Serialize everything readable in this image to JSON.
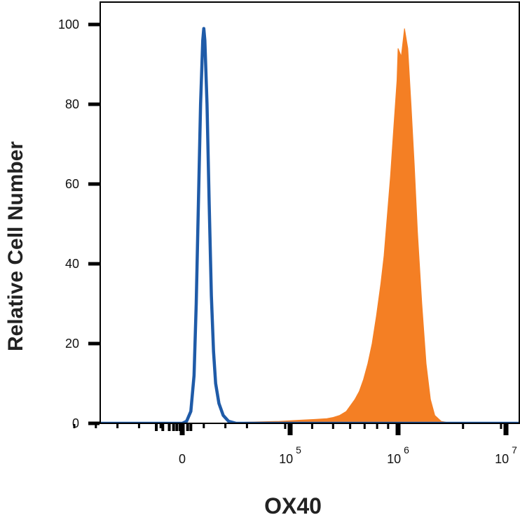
{
  "chart_data": {
    "type": "area",
    "xlabel": "OX40",
    "ylabel": "Relative Cell Number",
    "ylim": [
      0,
      100
    ],
    "yticks": [
      "0",
      "20",
      "40",
      "60",
      "80",
      "100"
    ],
    "x_scale": "biexponential",
    "xticks": [
      {
        "base": "0",
        "exp": ""
      },
      {
        "base": "10",
        "exp": "5"
      },
      {
        "base": "10",
        "exp": "6"
      },
      {
        "base": "10",
        "exp": "7"
      }
    ],
    "grid": false,
    "series": [
      {
        "style": "filled",
        "color": "#F47F24",
        "points": [
          [
            0.0,
            0.0
          ],
          [
            0.2,
            0.0
          ],
          [
            0.3,
            0.3
          ],
          [
            0.45,
            0.5
          ],
          [
            0.55,
            0.8
          ],
          [
            0.62,
            1.0
          ],
          [
            0.67,
            1.2
          ],
          [
            0.7,
            1.5
          ],
          [
            0.73,
            2.0
          ],
          [
            0.76,
            3.0
          ],
          [
            0.78,
            4.5
          ],
          [
            0.8,
            6.0
          ],
          [
            0.82,
            8.0
          ],
          [
            0.84,
            11.0
          ],
          [
            0.86,
            15.0
          ],
          [
            0.88,
            20.0
          ],
          [
            0.9,
            27.0
          ],
          [
            0.92,
            35.0
          ],
          [
            0.935,
            42.0
          ],
          [
            0.95,
            52.0
          ],
          [
            0.965,
            62.0
          ],
          [
            0.98,
            74.0
          ],
          [
            0.995,
            86.0
          ],
          [
            1.0,
            94.0
          ],
          [
            1.015,
            92.0
          ],
          [
            1.03,
            99.0
          ],
          [
            1.045,
            94.0
          ],
          [
            1.06,
            80.0
          ],
          [
            1.075,
            65.0
          ],
          [
            1.09,
            48.0
          ],
          [
            1.11,
            30.0
          ],
          [
            1.13,
            15.0
          ],
          [
            1.15,
            6.0
          ],
          [
            1.17,
            2.0
          ],
          [
            1.2,
            0.5
          ],
          [
            1.25,
            0.0
          ],
          [
            1.6,
            0.0
          ]
        ]
      },
      {
        "style": "line",
        "color": "#1F5BA8",
        "points": [
          [
            -0.6,
            0.0
          ],
          [
            0.0,
            0.0
          ],
          [
            0.02,
            0.5
          ],
          [
            0.04,
            3.0
          ],
          [
            0.055,
            12.0
          ],
          [
            0.065,
            30.0
          ],
          [
            0.075,
            55.0
          ],
          [
            0.085,
            80.0
          ],
          [
            0.095,
            96.0
          ],
          [
            0.1,
            99.0
          ],
          [
            0.105,
            96.0
          ],
          [
            0.115,
            80.0
          ],
          [
            0.125,
            55.0
          ],
          [
            0.135,
            32.0
          ],
          [
            0.145,
            18.0
          ],
          [
            0.155,
            10.0
          ],
          [
            0.17,
            5.0
          ],
          [
            0.19,
            2.0
          ],
          [
            0.215,
            0.5
          ],
          [
            0.25,
            0.0
          ],
          [
            1.6,
            0.0
          ]
        ]
      }
    ]
  }
}
